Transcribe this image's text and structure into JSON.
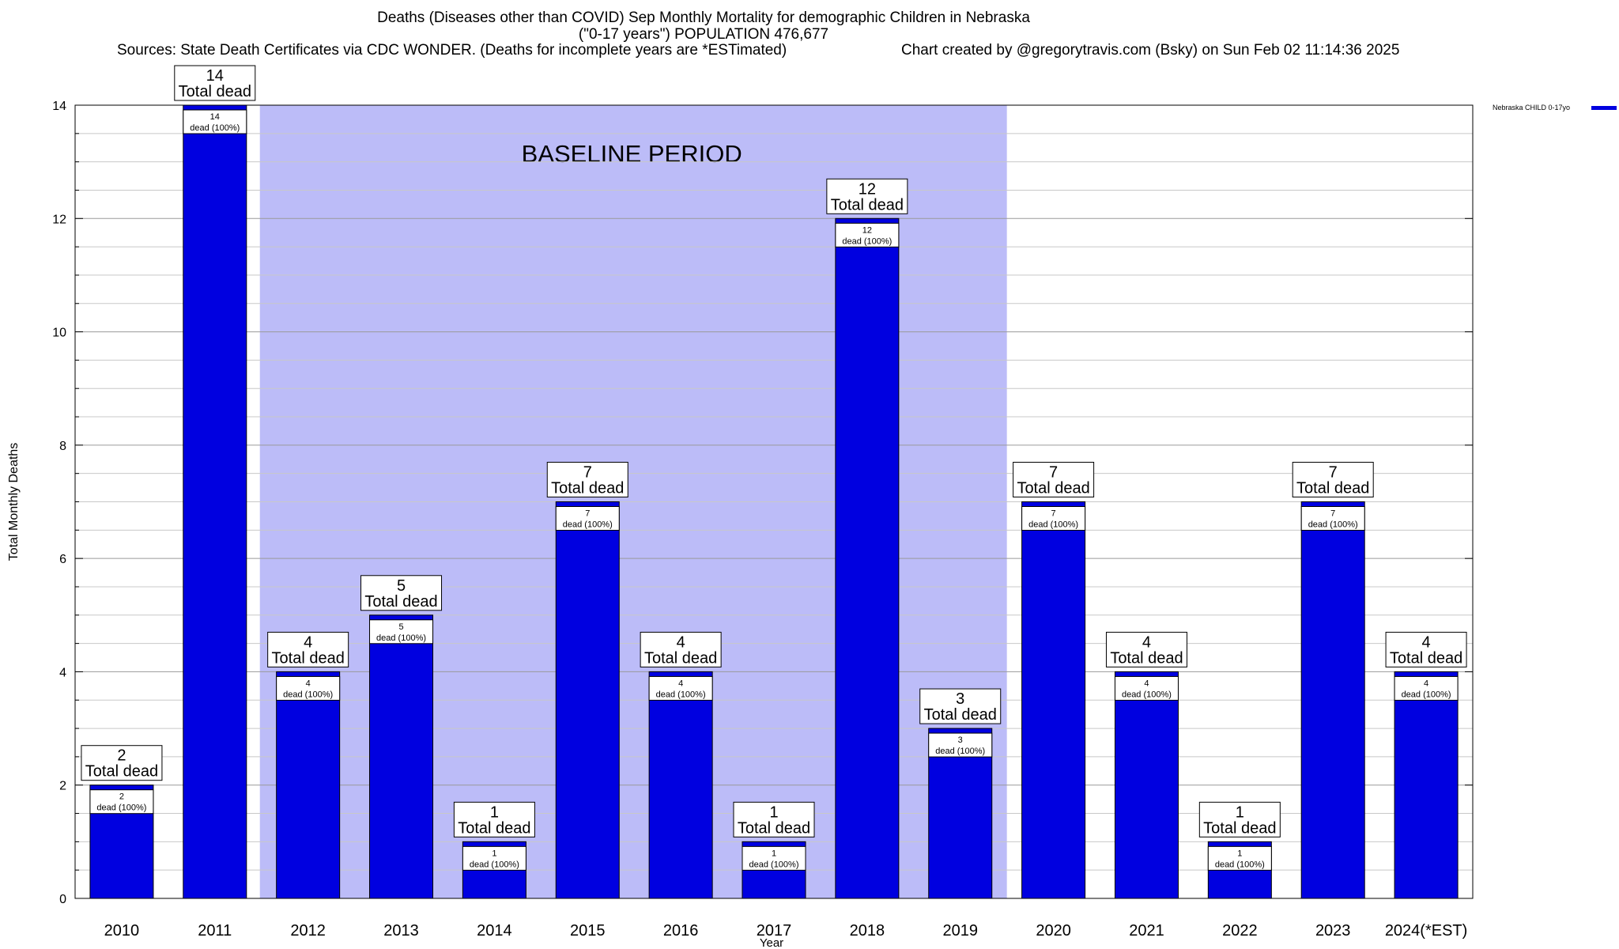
{
  "title_lines": [
    "Deaths (Diseases other than COVID) Sep Monthly Mortality for demographic Children in Nebraska",
    "(\"0-17 years\") POPULATION 476,677"
  ],
  "sources": "Sources: State Death Certificates via CDC WONDER. (Deaths for incomplete years are *ESTimated)",
  "credit": "Chart created by @gregorytravis.com (Bsky) on Sun Feb 02 11:14:36 2025",
  "colors": {
    "bar": "#0000e0",
    "baseline": "#bcbcf8"
  },
  "chart_data": {
    "type": "bar",
    "categories": [
      "2010",
      "2011",
      "2012",
      "2013",
      "2014",
      "2015",
      "2016",
      "2017",
      "2018",
      "2019",
      "2020",
      "2021",
      "2022",
      "2023",
      "2024(*EST)"
    ],
    "series": [
      {
        "name": "Nebraska CHILD 0-17yo",
        "values": [
          2,
          14,
          4,
          5,
          1,
          7,
          4,
          1,
          12,
          3,
          7,
          4,
          1,
          7,
          4
        ]
      }
    ],
    "xlabel": "Year",
    "ylabel": "Total Monthly Deaths",
    "ylim": [
      0,
      14
    ],
    "yticks": [
      0,
      2,
      4,
      6,
      8,
      10,
      12,
      14
    ],
    "grid": true,
    "legend": "top-right",
    "baseline_period": {
      "label": "BASELINE PERIOD",
      "from": "2012",
      "to": "2019"
    },
    "total_label_suffix": "Total dead",
    "inner_label_suffix": "dead (100%)"
  }
}
